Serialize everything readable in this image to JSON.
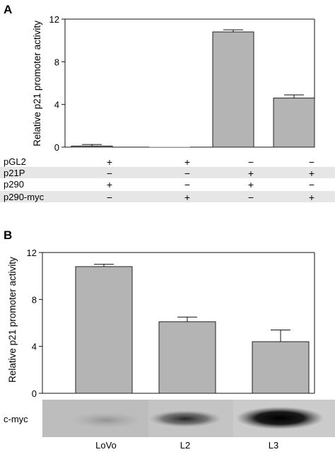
{
  "chart_data": [
    {
      "panel": "A",
      "type": "bar",
      "ylabel": "Relative p21 promoter activity",
      "ylim": [
        0,
        12
      ],
      "yticks": [
        "0",
        "4",
        "8",
        "12"
      ],
      "values": [
        0.1,
        0.0,
        10.8,
        4.6
      ],
      "errors": [
        0.15,
        0.0,
        0.2,
        0.3
      ],
      "conditions": [
        {
          "label": "pGL2",
          "signs": [
            "+",
            "+",
            "−",
            "−"
          ]
        },
        {
          "label": "p21P",
          "signs": [
            "−",
            "−",
            "+",
            "+"
          ]
        },
        {
          "label": "p290",
          "signs": [
            "+",
            "−",
            "+",
            "−"
          ]
        },
        {
          "label": "p290-myc",
          "signs": [
            "−",
            "+",
            "−",
            "+"
          ]
        }
      ]
    },
    {
      "panel": "B",
      "type": "bar",
      "ylabel": "Relative p21 promoter activity",
      "ylim": [
        0,
        12
      ],
      "yticks": [
        "0",
        "4",
        "8",
        "12"
      ],
      "categories": [
        "LoVo",
        "L2",
        "L3"
      ],
      "values": [
        10.8,
        6.1,
        4.4
      ],
      "errors": [
        0.2,
        0.4,
        1.0
      ],
      "blot_label": "c-myc"
    }
  ],
  "colors": {
    "bar": "#b4b4b4",
    "stripe": "#e6e6e6",
    "blot_bg": "#c8c8c8"
  }
}
